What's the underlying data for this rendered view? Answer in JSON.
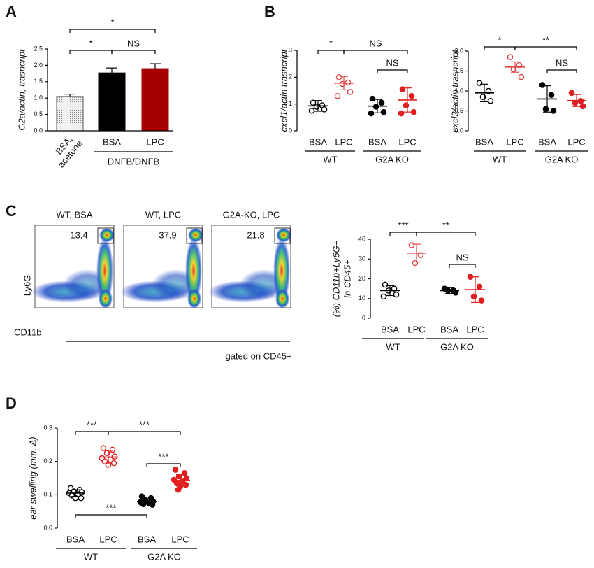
{
  "chart_data": [
    {
      "type": "bar",
      "panel": "A",
      "ylabel": "G2a/actin, trasncript",
      "categories": [
        [
          "BSA,",
          "acetone"
        ],
        "BSA",
        "LPC"
      ],
      "group_label": "DNFB/DNFB",
      "values": [
        1.05,
        1.77,
        1.9
      ],
      "errors": [
        0.07,
        0.15,
        0.15
      ],
      "colors": [
        "#e4e4e4",
        "#000000",
        "#a80000"
      ],
      "ylim": [
        0,
        2.5
      ],
      "yticks": [
        {
          "value": 0,
          "label": "0.0"
        },
        {
          "value": 0.5,
          "label": "0.5"
        },
        {
          "value": 1,
          "label": "1.0"
        },
        {
          "value": 1.5,
          "label": "1.5"
        },
        {
          "value": 2,
          "label": "2.0"
        },
        {
          "value": 2.5,
          "label": "2.5"
        }
      ],
      "annotations": [
        "*",
        "*",
        "NS"
      ]
    },
    {
      "type": "dotplot",
      "panel": "B",
      "ylabel": "cxcl1/actin trasncript",
      "groups": [
        {
          "label": "BSA",
          "color": "#000000",
          "filled": false,
          "values": [
            1.05,
            0.95,
            0.9,
            0.8,
            0.75
          ],
          "mean": 0.93,
          "sd": 0.2
        },
        {
          "label": "LPC",
          "color": "#e04848",
          "filled": false,
          "values": [
            2.0,
            1.8,
            1.75,
            1.45,
            1.3
          ],
          "mean": 1.78,
          "sd": 0.25
        },
        {
          "label": "BSA",
          "color": "#000000",
          "filled": true,
          "values": [
            1.2,
            1.05,
            0.9,
            0.7,
            0.65
          ],
          "mean": 0.92,
          "sd": 0.25
        },
        {
          "label": "LPC",
          "color": "#e02020",
          "filled": true,
          "values": [
            1.55,
            1.3,
            0.95,
            0.7,
            0.65
          ],
          "mean": 1.15,
          "sd": 0.45
        }
      ],
      "group_labels": [
        "WT",
        "G2A KO"
      ],
      "ylim": [
        0,
        3
      ],
      "yticks": [
        0,
        1,
        2,
        3
      ],
      "annotations": [
        "*",
        "NS",
        "NS"
      ]
    },
    {
      "type": "dotplot",
      "ylabel": "cxcl2/actin trasncript",
      "groups": [
        {
          "label": "BSA",
          "color": "#000000",
          "filled": false,
          "values": [
            1.2,
            1.0,
            0.85,
            0.75
          ],
          "mean": 0.95,
          "sd": 0.22
        },
        {
          "label": "LPC",
          "color": "#e04848",
          "filled": false,
          "values": [
            1.85,
            1.65,
            1.55,
            1.35
          ],
          "mean": 1.6,
          "sd": 0.13
        },
        {
          "label": "BSA",
          "color": "#000000",
          "filled": true,
          "values": [
            1.15,
            0.9,
            0.55,
            0.5
          ],
          "mean": 0.8,
          "sd": 0.33
        },
        {
          "label": "LPC",
          "color": "#e02020",
          "filled": true,
          "values": [
            0.95,
            0.75,
            0.7,
            0.62
          ],
          "mean": 0.76,
          "sd": 0.15
        }
      ],
      "group_labels": [
        "WT",
        "G2A KO"
      ],
      "ylim": [
        0,
        2
      ],
      "yticks": [
        {
          "value": 0,
          "label": "0.0"
        },
        {
          "value": 0.5,
          "label": "0.5"
        },
        {
          "value": 1,
          "label": "1.0"
        },
        {
          "value": 1.5,
          "label": "1.5"
        },
        {
          "value": 2,
          "label": "2.0"
        }
      ],
      "annotations": [
        "*",
        "**",
        "NS"
      ]
    },
    {
      "type": "flow",
      "panel": "C",
      "ylabel": "Ly6G",
      "xlabel": "CD11b",
      "note": "gated on CD45+",
      "plots": [
        {
          "title": "WT, BSA",
          "gate_value": "13.4"
        },
        {
          "title": "WT, LPC",
          "gate_value": "37.9"
        },
        {
          "title": "G2A-KO, LPC",
          "gate_value": "21.8"
        }
      ]
    },
    {
      "type": "dotplot",
      "ylabel": [
        "(%) CD11b+Ly6G+",
        "in CD45+"
      ],
      "groups": [
        {
          "label": "BSA",
          "color": "#000000",
          "filled": false,
          "values": [
            17,
            15,
            14,
            12,
            11
          ],
          "mean": 14,
          "sd": 2.5
        },
        {
          "label": "LPC",
          "color": "#e04848",
          "filled": false,
          "values": [
            37,
            32,
            28
          ],
          "mean": 33,
          "sd": 4.5
        },
        {
          "label": "BSA",
          "color": "#000000",
          "filled": true,
          "values": [
            15,
            14,
            14,
            13
          ],
          "mean": 14,
          "sd": 1.5
        },
        {
          "label": "LPC",
          "color": "#e02020",
          "filled": true,
          "values": [
            21,
            16,
            11,
            9
          ],
          "mean": 14.5,
          "sd": 6.5
        }
      ],
      "group_labels": [
        "WT",
        "G2A KO"
      ],
      "ylim": [
        0,
        40
      ],
      "yticks": [
        0,
        10,
        20,
        30,
        40
      ],
      "annotations": [
        "***",
        "**",
        "NS"
      ]
    },
    {
      "type": "dotplot",
      "panel": "D",
      "ylabel": "ear swelling (mm, Δ)",
      "groups": [
        {
          "label": "BSA",
          "color": "#000000",
          "filled": false,
          "values": [
            0.12,
            0.115,
            0.11,
            0.108,
            0.105,
            0.1,
            0.098,
            0.09,
            0.09
          ],
          "mean": 0.105,
          "sd": 0.01
        },
        {
          "label": "LPC",
          "color": "#e02020",
          "filled": false,
          "values": [
            0.24,
            0.235,
            0.225,
            0.215,
            0.21,
            0.205,
            0.2,
            0.195,
            0.19
          ],
          "mean": 0.213,
          "sd": 0.02
        },
        {
          "label": "BSA",
          "color": "#000000",
          "filled": true,
          "values": [
            0.095,
            0.09,
            0.085,
            0.08,
            0.078,
            0.075,
            0.072,
            0.07
          ],
          "mean": 0.08,
          "sd": 0.008
        },
        {
          "label": "LPC",
          "color": "#e02020",
          "filled": true,
          "values": [
            0.175,
            0.165,
            0.155,
            0.15,
            0.145,
            0.14,
            0.135,
            0.13,
            0.125,
            0.115
          ],
          "mean": 0.143,
          "sd": 0.017
        }
      ],
      "group_labels": [
        "WT",
        "G2A KO"
      ],
      "ylim": [
        0,
        0.3
      ],
      "yticks": [
        {
          "value": 0,
          "label": "0.0"
        },
        {
          "value": 0.1,
          "label": "0.1"
        },
        {
          "value": 0.2,
          "label": "0.2"
        },
        {
          "value": 0.3,
          "label": "0.3"
        }
      ],
      "annotations": [
        "***",
        "***",
        "***",
        "***"
      ]
    }
  ]
}
